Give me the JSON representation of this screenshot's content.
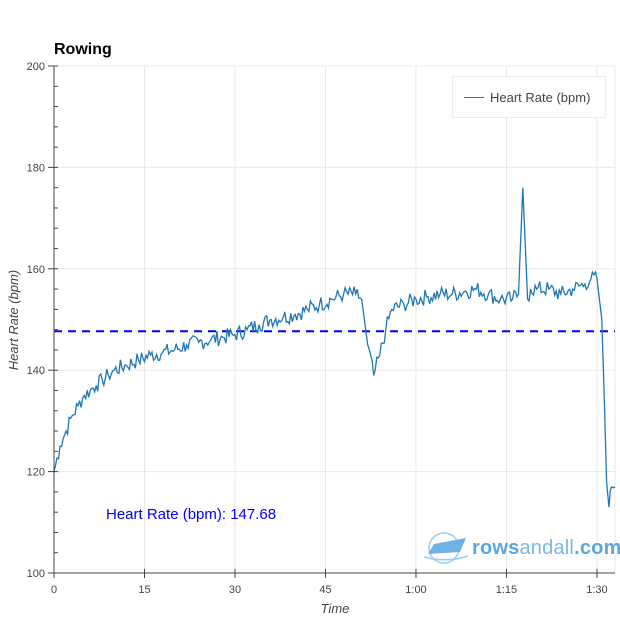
{
  "chart_data": {
    "type": "line",
    "title": "Rowing",
    "xlabel": "Time",
    "ylabel": "Heart Rate (bpm)",
    "xlim_minutes": [
      0,
      93
    ],
    "ylim": [
      100,
      200
    ],
    "x_ticks": [
      "0",
      "15",
      "30",
      "45",
      "1:00",
      "1:15",
      "1:30"
    ],
    "x_tick_minutes": [
      0,
      15,
      30,
      45,
      60,
      75,
      90
    ],
    "y_ticks": [
      "100",
      "120",
      "140",
      "160",
      "180",
      "200"
    ],
    "y_tick_values": [
      100,
      120,
      140,
      160,
      180,
      200
    ],
    "grid": true,
    "legend": {
      "position": "top-right",
      "entries": [
        "Heart Rate (bpm)"
      ]
    },
    "series": [
      {
        "name": "Heart Rate (bpm)",
        "color": "#1f77b4",
        "x_minutes": [
          0,
          1,
          2,
          3,
          4,
          5,
          6,
          7,
          8,
          9,
          10,
          12,
          14,
          16,
          18,
          20,
          22,
          24,
          26,
          28,
          30,
          32,
          34,
          36,
          38,
          40,
          42,
          44,
          46,
          48,
          50,
          51,
          52,
          53,
          54,
          55,
          56,
          58,
          60,
          62,
          64,
          66,
          68,
          70,
          72,
          74,
          76,
          77,
          77.7,
          78.5,
          79,
          80,
          82,
          84,
          86,
          88,
          89,
          90,
          90.8,
          91.2,
          91.6,
          92,
          92.4,
          93
        ],
        "values": [
          120,
          125,
          128,
          131,
          133,
          135,
          136,
          137,
          138,
          139,
          140,
          141,
          142,
          143,
          143.5,
          144,
          145,
          145.5,
          146,
          146.5,
          147,
          148,
          149,
          150,
          150.5,
          151,
          152,
          153,
          154,
          155,
          155,
          154,
          145,
          139,
          143,
          148,
          152,
          153,
          154,
          154.5,
          155,
          155,
          155.5,
          156,
          155,
          154,
          154,
          155,
          176,
          154,
          156,
          156,
          156,
          155,
          156,
          157,
          158,
          158,
          150,
          135,
          118,
          113,
          117,
          117
        ]
      }
    ],
    "annotations": [
      {
        "type": "hline",
        "value": 147.68,
        "style": "dashed",
        "color": "#0000ff"
      },
      {
        "type": "text",
        "text": "Heart Rate (bpm): 147.68",
        "color": "#0000ff"
      }
    ]
  },
  "header": {
    "title": "Rowing"
  },
  "legend": {
    "label": "Heart Rate (bpm)"
  },
  "annotation": {
    "text": "Heart Rate (bpm): 147.68"
  },
  "axes": {
    "xlabel": "Time",
    "ylabel": "Heart Rate (bpm)",
    "x_ticks": [
      "0",
      "15",
      "30",
      "45",
      "1:00",
      "1:15",
      "1:30"
    ],
    "y_ticks": [
      "100",
      "120",
      "140",
      "160",
      "180",
      "200"
    ]
  },
  "watermark": {
    "prefix": "rows",
    "suffix": "andall",
    "tld": ".com"
  },
  "colors": {
    "line": "#1f77b4",
    "average": "#0000ff",
    "grid": "#e8e8e8",
    "axis": "#444444"
  }
}
